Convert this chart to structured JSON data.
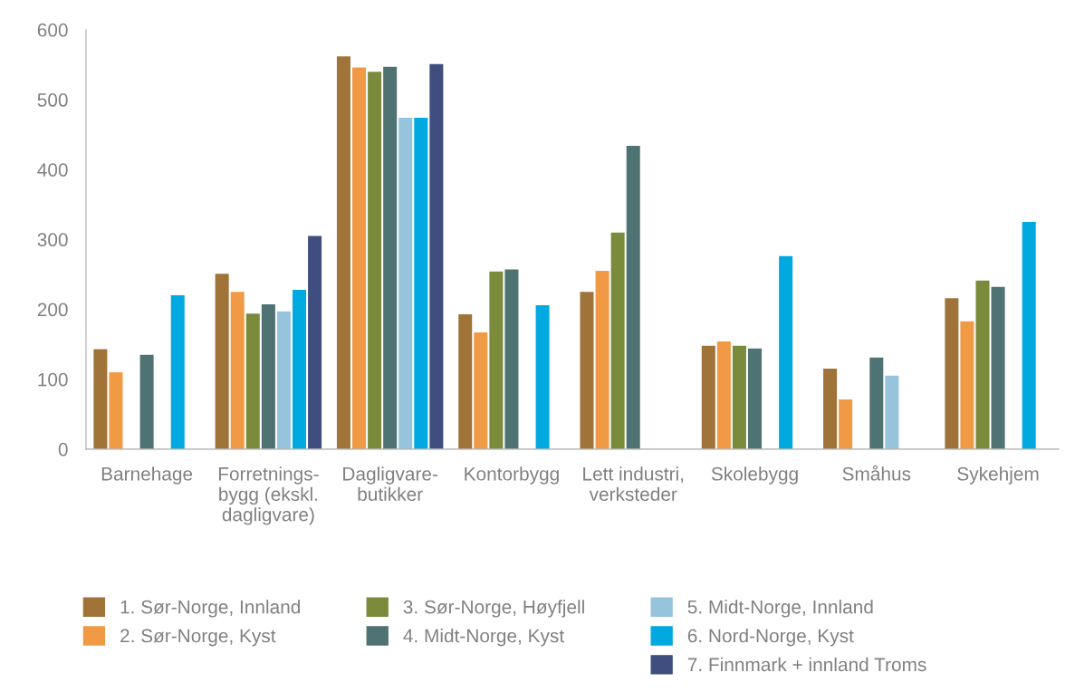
{
  "chart_data": {
    "type": "bar",
    "categories": [
      "Barnehage",
      "Forretnings-\nbygg (ekskl.\ndagligvare)",
      "Dagligvare-\nbutikker",
      "Kontorbygg",
      "Lett industri,\nverksteder",
      "Skolebygg",
      "Småhus",
      "Sykehjem"
    ],
    "series": [
      {
        "name": "1. Sør-Norge, Innland",
        "color": "#a07339",
        "values": [
          143,
          251,
          562,
          193,
          225,
          148,
          115,
          216
        ]
      },
      {
        "name": "2. Sør-Norge, Kyst",
        "color": "#f09a45",
        "values": [
          110,
          225,
          546,
          167,
          255,
          154,
          71,
          183
        ]
      },
      {
        "name": "3. Sør-Norge, Høyfjell",
        "color": "#7a8c3c",
        "values": [
          null,
          194,
          540,
          254,
          310,
          148,
          null,
          241
        ]
      },
      {
        "name": "4. Midt-Norge, Kyst",
        "color": "#4f7272",
        "values": [
          135,
          207,
          547,
          257,
          434,
          144,
          131,
          232
        ]
      },
      {
        "name": "5. Midt-Norge, Innland",
        "color": "#95c4dc",
        "values": [
          null,
          197,
          474,
          null,
          null,
          null,
          105,
          null
        ]
      },
      {
        "name": "6. Nord-Norge, Kyst",
        "color": "#00a9e0",
        "values": [
          220,
          228,
          474,
          206,
          null,
          276,
          null,
          325
        ]
      },
      {
        "name": "7. Finnmark + innland Troms",
        "color": "#3f4e7f",
        "values": [
          null,
          305,
          551,
          null,
          null,
          null,
          null,
          null
        ]
      }
    ],
    "ylim": [
      0,
      600
    ],
    "yticks": [
      0,
      100,
      200,
      300,
      400,
      500,
      600
    ],
    "grid": false,
    "legend": "bottom"
  }
}
